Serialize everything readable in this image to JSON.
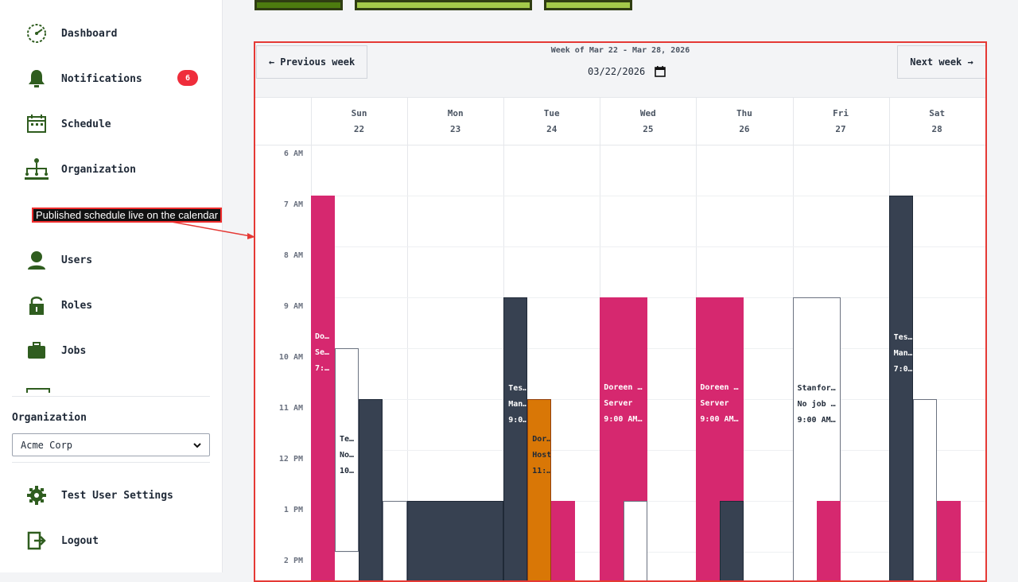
{
  "sidebar": {
    "items": [
      {
        "label": "Dashboard",
        "icon": "dashboard-icon"
      },
      {
        "label": "Notifications",
        "icon": "bell-icon",
        "badge": "6"
      },
      {
        "label": "Schedule",
        "icon": "calendar-icon"
      },
      {
        "label": "Organization",
        "icon": "org-chart-icon"
      },
      {
        "label": "Users",
        "icon": "user-icon"
      },
      {
        "label": "Roles",
        "icon": "lock-icon"
      },
      {
        "label": "Jobs",
        "icon": "briefcase-icon"
      }
    ],
    "organization_label": "Organization",
    "organization_value": "Acme Corp",
    "settings_label": "Test User Settings",
    "logout_label": "Logout"
  },
  "annotation": {
    "text": "Published schedule live on the calendar"
  },
  "calendar": {
    "prev_label": "← Previous week",
    "next_label": "Next week →",
    "week_label": "Week of Mar 22 - Mar 28, 2026",
    "date_value": "03/22/2026",
    "days": [
      {
        "name": "Sun",
        "date": "22"
      },
      {
        "name": "Mon",
        "date": "23"
      },
      {
        "name": "Tue",
        "date": "24"
      },
      {
        "name": "Wed",
        "date": "25"
      },
      {
        "name": "Thu",
        "date": "26"
      },
      {
        "name": "Fri",
        "date": "27"
      },
      {
        "name": "Sat",
        "date": "28"
      }
    ],
    "times": [
      "6 AM",
      "7 AM",
      "8 AM",
      "9 AM",
      "10 AM",
      "11 AM",
      "12 PM",
      "1 PM",
      "2 PM"
    ],
    "events": [
      {
        "day": 0,
        "col": 0,
        "start": 7,
        "end": 15,
        "color": "pink",
        "lines": [
          "Do…",
          "Se…",
          "7:…"
        ]
      },
      {
        "day": 0,
        "col": 1,
        "start": 10,
        "end": 14,
        "color": "white",
        "lines": [
          "Te…",
          "No…",
          "10…"
        ]
      },
      {
        "day": 0,
        "col": 2,
        "start": 11,
        "end": 15,
        "color": "dark",
        "lines": []
      },
      {
        "day": 0,
        "col": 3,
        "start": 13,
        "end": 15,
        "color": "white",
        "lines": []
      },
      {
        "day": 1,
        "col": 0,
        "start": 13,
        "end": 15,
        "color": "dark",
        "lines": [],
        "span": 4
      },
      {
        "day": 2,
        "col": 0,
        "start": 9,
        "end": 15,
        "color": "dark",
        "lines": [
          "Tes…",
          "Man…",
          "9:0…"
        ]
      },
      {
        "day": 2,
        "col": 1,
        "start": 11,
        "end": 15,
        "color": "orange",
        "lines": [
          "Dor…",
          "Host",
          "11:…"
        ]
      },
      {
        "day": 2,
        "col": 2,
        "start": 13,
        "end": 15,
        "color": "pink",
        "lines": []
      },
      {
        "day": 3,
        "col": 0,
        "start": 9,
        "end": 15,
        "color": "pink",
        "lines": [
          "Doreen …",
          "Server",
          "9:00 AM…"
        ]
      },
      {
        "day": 3,
        "col": 1,
        "start": 13,
        "end": 15,
        "color": "white",
        "lines": []
      },
      {
        "day": 4,
        "col": 0,
        "start": 9,
        "end": 15,
        "color": "pink",
        "lines": [
          "Doreen …",
          "Server",
          "9:00 AM…"
        ]
      },
      {
        "day": 4,
        "col": 1,
        "start": 13,
        "end": 15,
        "color": "dark",
        "lines": []
      },
      {
        "day": 5,
        "col": 0,
        "start": 9,
        "end": 15,
        "color": "white",
        "lines": [
          "Stanfor…",
          "No job …",
          "9:00 AM…"
        ]
      },
      {
        "day": 5,
        "col": 1,
        "start": 13,
        "end": 15,
        "color": "pink",
        "lines": []
      },
      {
        "day": 6,
        "col": 0,
        "start": 7,
        "end": 15,
        "color": "dark",
        "lines": [
          "Tes…",
          "Man…",
          "7:0…"
        ]
      },
      {
        "day": 6,
        "col": 1,
        "start": 11,
        "end": 15,
        "color": "white",
        "lines": []
      },
      {
        "day": 6,
        "col": 2,
        "start": 13,
        "end": 15,
        "color": "pink",
        "lines": []
      }
    ]
  },
  "colors": {
    "accent": "#2f5d1f",
    "badge": "#ef2d3b",
    "pink": "#d6286f",
    "dark": "#374151",
    "orange": "#d97706",
    "frame": "#e53935"
  }
}
